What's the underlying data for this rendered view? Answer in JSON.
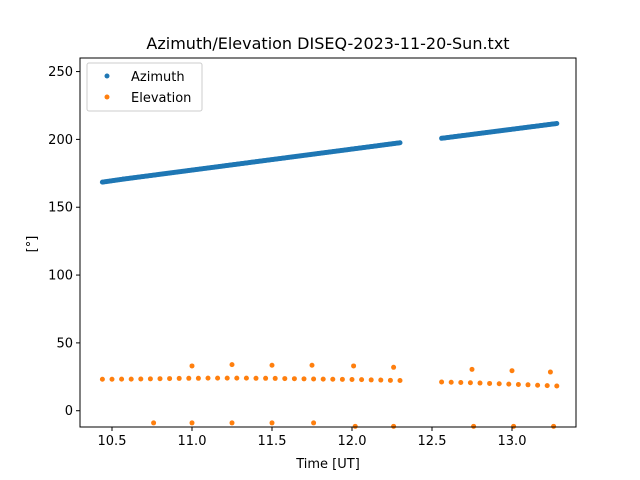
{
  "chart_data": {
    "type": "scatter",
    "title": "Azimuth/Elevation DISEQ-2023-11-20-Sun.txt",
    "xlabel": "Time [UT]",
    "ylabel": "[°]",
    "xlim": [
      10.3,
      13.4
    ],
    "ylim": [
      -12,
      260
    ],
    "xticks": [
      10.5,
      11.0,
      11.5,
      12.0,
      12.5,
      13.0
    ],
    "xtick_labels": [
      "10.5",
      "11.0",
      "11.5",
      "12.0",
      "12.5",
      "13.0"
    ],
    "yticks": [
      0,
      50,
      100,
      150,
      200,
      250
    ],
    "ytick_labels": [
      "0",
      "50",
      "100",
      "150",
      "200",
      "250"
    ],
    "grid": false,
    "legend_position": "top-left",
    "series": [
      {
        "name": "Azimuth",
        "color": "#1f77b4",
        "segments": [
          {
            "x_start": 10.44,
            "x_end": 10.57,
            "y_start": 168.5,
            "y_end": 170.7
          },
          {
            "x_start": 10.57,
            "x_end": 12.3,
            "y_start": 170.7,
            "y_end": 197.5
          },
          {
            "x_start": 12.56,
            "x_end": 13.28,
            "y_start": 200.8,
            "y_end": 211.7
          }
        ]
      },
      {
        "name": "Elevation",
        "color": "#ff7f0e",
        "points": [
          [
            10.44,
            23.2
          ],
          [
            10.5,
            23.2
          ],
          [
            10.56,
            23.3
          ],
          [
            10.62,
            23.3
          ],
          [
            10.68,
            23.4
          ],
          [
            10.74,
            23.5
          ],
          [
            10.8,
            23.6
          ],
          [
            10.86,
            23.7
          ],
          [
            10.92,
            23.8
          ],
          [
            10.98,
            23.9
          ],
          [
            11.04,
            23.9
          ],
          [
            11.1,
            24.0
          ],
          [
            11.16,
            24.0
          ],
          [
            11.22,
            24.0
          ],
          [
            11.28,
            24.0
          ],
          [
            11.34,
            24.0
          ],
          [
            11.4,
            23.9
          ],
          [
            11.46,
            23.9
          ],
          [
            11.52,
            23.8
          ],
          [
            11.58,
            23.7
          ],
          [
            11.64,
            23.6
          ],
          [
            11.7,
            23.5
          ],
          [
            11.76,
            23.4
          ],
          [
            11.82,
            23.3
          ],
          [
            11.88,
            23.2
          ],
          [
            11.94,
            23.1
          ],
          [
            12.0,
            23.0
          ],
          [
            12.06,
            22.9
          ],
          [
            12.12,
            22.7
          ],
          [
            12.18,
            22.6
          ],
          [
            12.24,
            22.4
          ],
          [
            12.3,
            22.3
          ],
          [
            12.56,
            21.2
          ],
          [
            12.62,
            21.0
          ],
          [
            12.68,
            20.8
          ],
          [
            12.74,
            20.6
          ],
          [
            12.8,
            20.4
          ],
          [
            12.86,
            20.1
          ],
          [
            12.92,
            19.9
          ],
          [
            12.98,
            19.6
          ],
          [
            13.04,
            19.3
          ],
          [
            13.1,
            19.1
          ],
          [
            13.16,
            18.8
          ],
          [
            13.22,
            18.5
          ],
          [
            13.28,
            18.2
          ],
          [
            11.0,
            33.0
          ],
          [
            11.25,
            34.0
          ],
          [
            11.5,
            33.5
          ],
          [
            11.75,
            33.5
          ],
          [
            12.01,
            33.0
          ],
          [
            12.26,
            32.0
          ],
          [
            12.75,
            30.5
          ],
          [
            13.0,
            29.5
          ],
          [
            13.24,
            28.5
          ],
          [
            10.76,
            -9.0
          ],
          [
            11.0,
            -9.0
          ],
          [
            11.25,
            -9.0
          ],
          [
            11.5,
            -9.0
          ],
          [
            11.76,
            -9.0
          ],
          [
            12.02,
            -11.5
          ],
          [
            12.26,
            -11.5
          ],
          [
            12.76,
            -11.5
          ],
          [
            13.01,
            -11.5
          ],
          [
            13.26,
            -11.5
          ]
        ]
      }
    ]
  }
}
